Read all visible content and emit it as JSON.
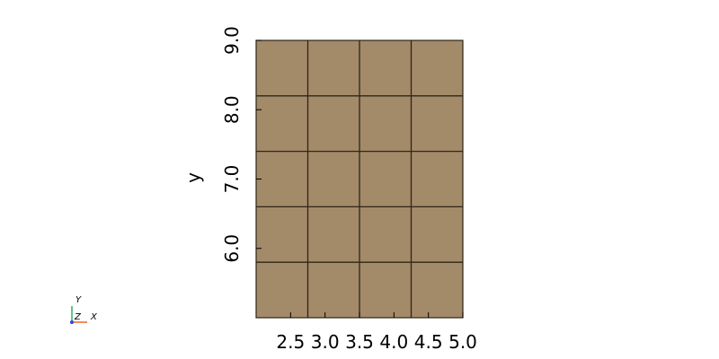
{
  "chart_data": {
    "type": "heatmap",
    "title": "",
    "xlabel": "",
    "ylabel": "y",
    "x_ticks": [
      "2.5",
      "3.0",
      "3.5",
      "4.0",
      "4.5",
      "5.0"
    ],
    "y_ticks": [
      "6.0",
      "7.0",
      "8.0",
      "9.0"
    ],
    "xlim": [
      2.0,
      5.0
    ],
    "ylim": [
      5.0,
      9.0
    ],
    "x_edges": [
      2.0,
      2.75,
      3.5,
      4.25,
      5.0
    ],
    "y_edges": [
      5.0,
      5.8,
      6.6,
      7.4,
      8.2,
      9.0
    ],
    "cell_color": "#a38a68",
    "grid_line_color": "#2e2618",
    "grid": true,
    "legend": "none"
  },
  "orientation_triad": {
    "x_label": "X",
    "y_label": "Y",
    "z_label": "Z",
    "x_color": "#e8692c",
    "y_color": "#2fae6b",
    "z_color": "#3046d6"
  }
}
